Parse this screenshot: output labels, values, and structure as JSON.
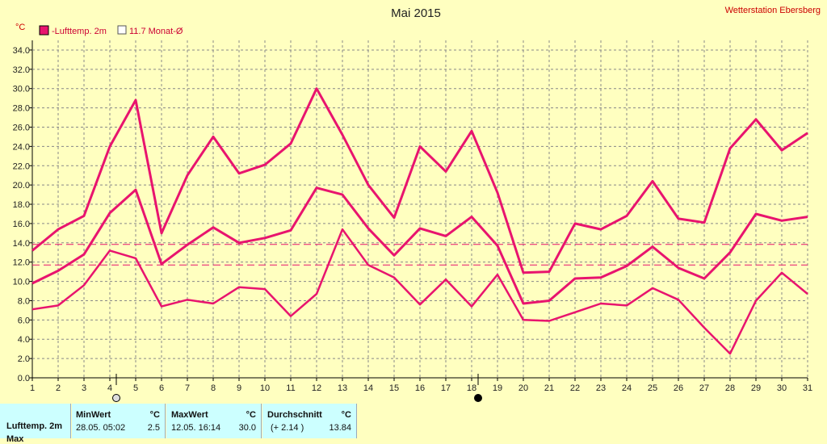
{
  "chart_data": {
    "type": "line",
    "title": "Mai 2015",
    "station": "Wetterstation Ebersberg",
    "ylabel": "°C",
    "ylim": [
      0,
      35
    ],
    "yticks": [
      "0.0",
      "2.0",
      "4.0",
      "6.0",
      "8.0",
      "10.0",
      "12.0",
      "14.0",
      "16.0",
      "18.0",
      "20.0",
      "22.0",
      "24.0",
      "26.0",
      "28.0",
      "30.0",
      "32.0",
      "34.0"
    ],
    "x": [
      1,
      2,
      3,
      4,
      5,
      6,
      7,
      8,
      9,
      10,
      11,
      12,
      13,
      14,
      15,
      16,
      17,
      18,
      19,
      20,
      21,
      22,
      23,
      24,
      25,
      26,
      27,
      28,
      29,
      30,
      31
    ],
    "grid": true,
    "legend": [
      {
        "label": "-Lufttemp. 2m",
        "color": "#e8146e",
        "filled": true
      },
      {
        "label": "11.7 Monat-Ø",
        "color": "#e8146e",
        "filled": false
      }
    ],
    "series": [
      {
        "role": "max",
        "color": "#e8146e",
        "values": [
          13.2,
          15.4,
          16.8,
          24.0,
          28.8,
          15.0,
          21.0,
          25.0,
          21.2,
          22.1,
          24.3,
          30.0,
          25.2,
          20.0,
          16.6,
          24.0,
          21.4,
          25.6,
          19.2,
          10.9,
          11.0,
          16.0,
          15.4,
          16.8,
          20.4,
          16.5,
          16.1,
          23.8,
          26.8,
          23.6,
          25.4
        ]
      },
      {
        "role": "avg",
        "color": "#e8146e",
        "values": [
          9.8,
          11.1,
          12.8,
          17.1,
          19.5,
          11.8,
          13.8,
          15.6,
          14.0,
          14.5,
          15.3,
          19.7,
          19.0,
          15.5,
          12.7,
          15.5,
          14.7,
          16.7,
          13.7,
          7.7,
          8.0,
          10.3,
          10.4,
          11.6,
          13.6,
          11.4,
          10.3,
          13.0,
          17.0,
          16.3,
          16.7
        ]
      },
      {
        "role": "min",
        "color": "#e8146e",
        "values": [
          7.1,
          7.5,
          9.6,
          13.2,
          12.4,
          7.4,
          8.1,
          7.7,
          9.4,
          9.2,
          6.4,
          8.7,
          15.4,
          11.7,
          10.4,
          7.6,
          10.2,
          7.4,
          10.7,
          6.0,
          5.9,
          6.8,
          7.7,
          7.5,
          9.3,
          8.1,
          5.2,
          2.5,
          8.0,
          10.9,
          8.7
        ]
      }
    ],
    "reference_lines": [
      13.84,
      11.7
    ],
    "markers": [
      {
        "day": 4.25,
        "symbol": "open-circle"
      },
      {
        "day": 18.25,
        "symbol": "filled-circle"
      }
    ]
  },
  "stats": {
    "row_labels": [
      "Lufttemp. 2m",
      "Max"
    ],
    "min_header": "MinWert",
    "min_unit": "°C",
    "min_when": "28.05.  05:02",
    "min_value": "2.5",
    "max_header": "MaxWert",
    "max_unit": "°C",
    "max_when": "12.05.  16:14",
    "max_value": "30.0",
    "avg_header": "Durchschnitt",
    "avg_unit": "°C",
    "avg_delta": "(+ 2.14 )",
    "avg_value": "13.84"
  }
}
